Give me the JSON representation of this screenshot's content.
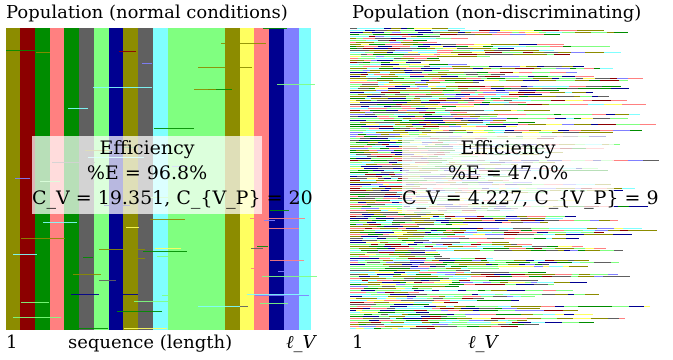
{
  "left": {
    "title": "Population (normal conditions)",
    "overlay": {
      "heading": "Efficiency",
      "percent_line": "%E = 96.8%",
      "cv_line": "C_V = 19.351, C_{V_P} = 20"
    },
    "axis_start": "1",
    "axis_middle": "sequence (length)",
    "axis_end": "ℓ_V"
  },
  "right": {
    "title": "Population (non-discriminating)",
    "overlay": {
      "heading": "Efficiency",
      "percent_line": "%E = 47.0%",
      "cv_line": "C_V = 4.227, C_{V_P} = 9"
    },
    "axis_start": "1",
    "axis_end": "ℓ_V"
  },
  "colors": [
    "#8c8c00",
    "#8c0000",
    "#008c00",
    "#ff8080",
    "#008c00",
    "#606060",
    "#80ff80",
    "#000090",
    "#8c8c00",
    "#606060",
    "#80ffff",
    "#80ff80",
    "#80ff80",
    "#8c8c00",
    "#ffff60",
    "#ff8080",
    "#000090",
    "#8080ff",
    "#80ffff"
  ]
}
